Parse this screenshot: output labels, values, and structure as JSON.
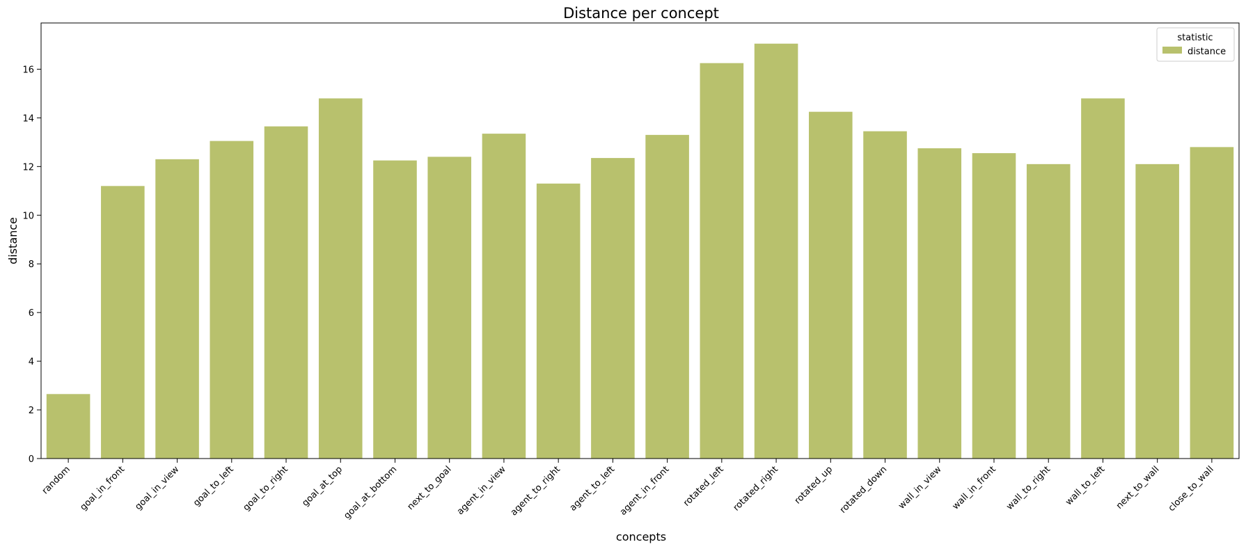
{
  "chart_data": {
    "type": "bar",
    "title": "Distance per concept",
    "xlabel": "concepts",
    "ylabel": "distance",
    "categories": [
      "random",
      "goal_in_front",
      "goal_in_view",
      "goal_to_left",
      "goal_to_right",
      "goal_at_top",
      "goal_at_bottom",
      "next_to_goal",
      "agent_in_view",
      "agent_to_right",
      "agent_to_left",
      "agent_in_front",
      "rotated_left",
      "rotated_right",
      "rotated_up",
      "rotated_down",
      "wall_in_view",
      "wall_in_front",
      "wall_to_right",
      "wall_to_left",
      "next_to_wall",
      "close_to_wall"
    ],
    "series": [
      {
        "name": "distance",
        "color": "#b8c16d",
        "values": [
          2.65,
          11.2,
          12.3,
          13.05,
          13.65,
          14.8,
          12.25,
          12.4,
          13.35,
          11.3,
          12.35,
          13.3,
          16.25,
          17.05,
          14.25,
          13.45,
          12.75,
          12.55,
          12.1,
          14.8,
          12.1,
          12.8
        ]
      }
    ],
    "ylim": [
      0,
      17.9
    ],
    "yticks": [
      0,
      2,
      4,
      6,
      8,
      10,
      12,
      14,
      16
    ],
    "grid": false,
    "legend": {
      "title": "statistic",
      "placement": "top-right"
    }
  }
}
